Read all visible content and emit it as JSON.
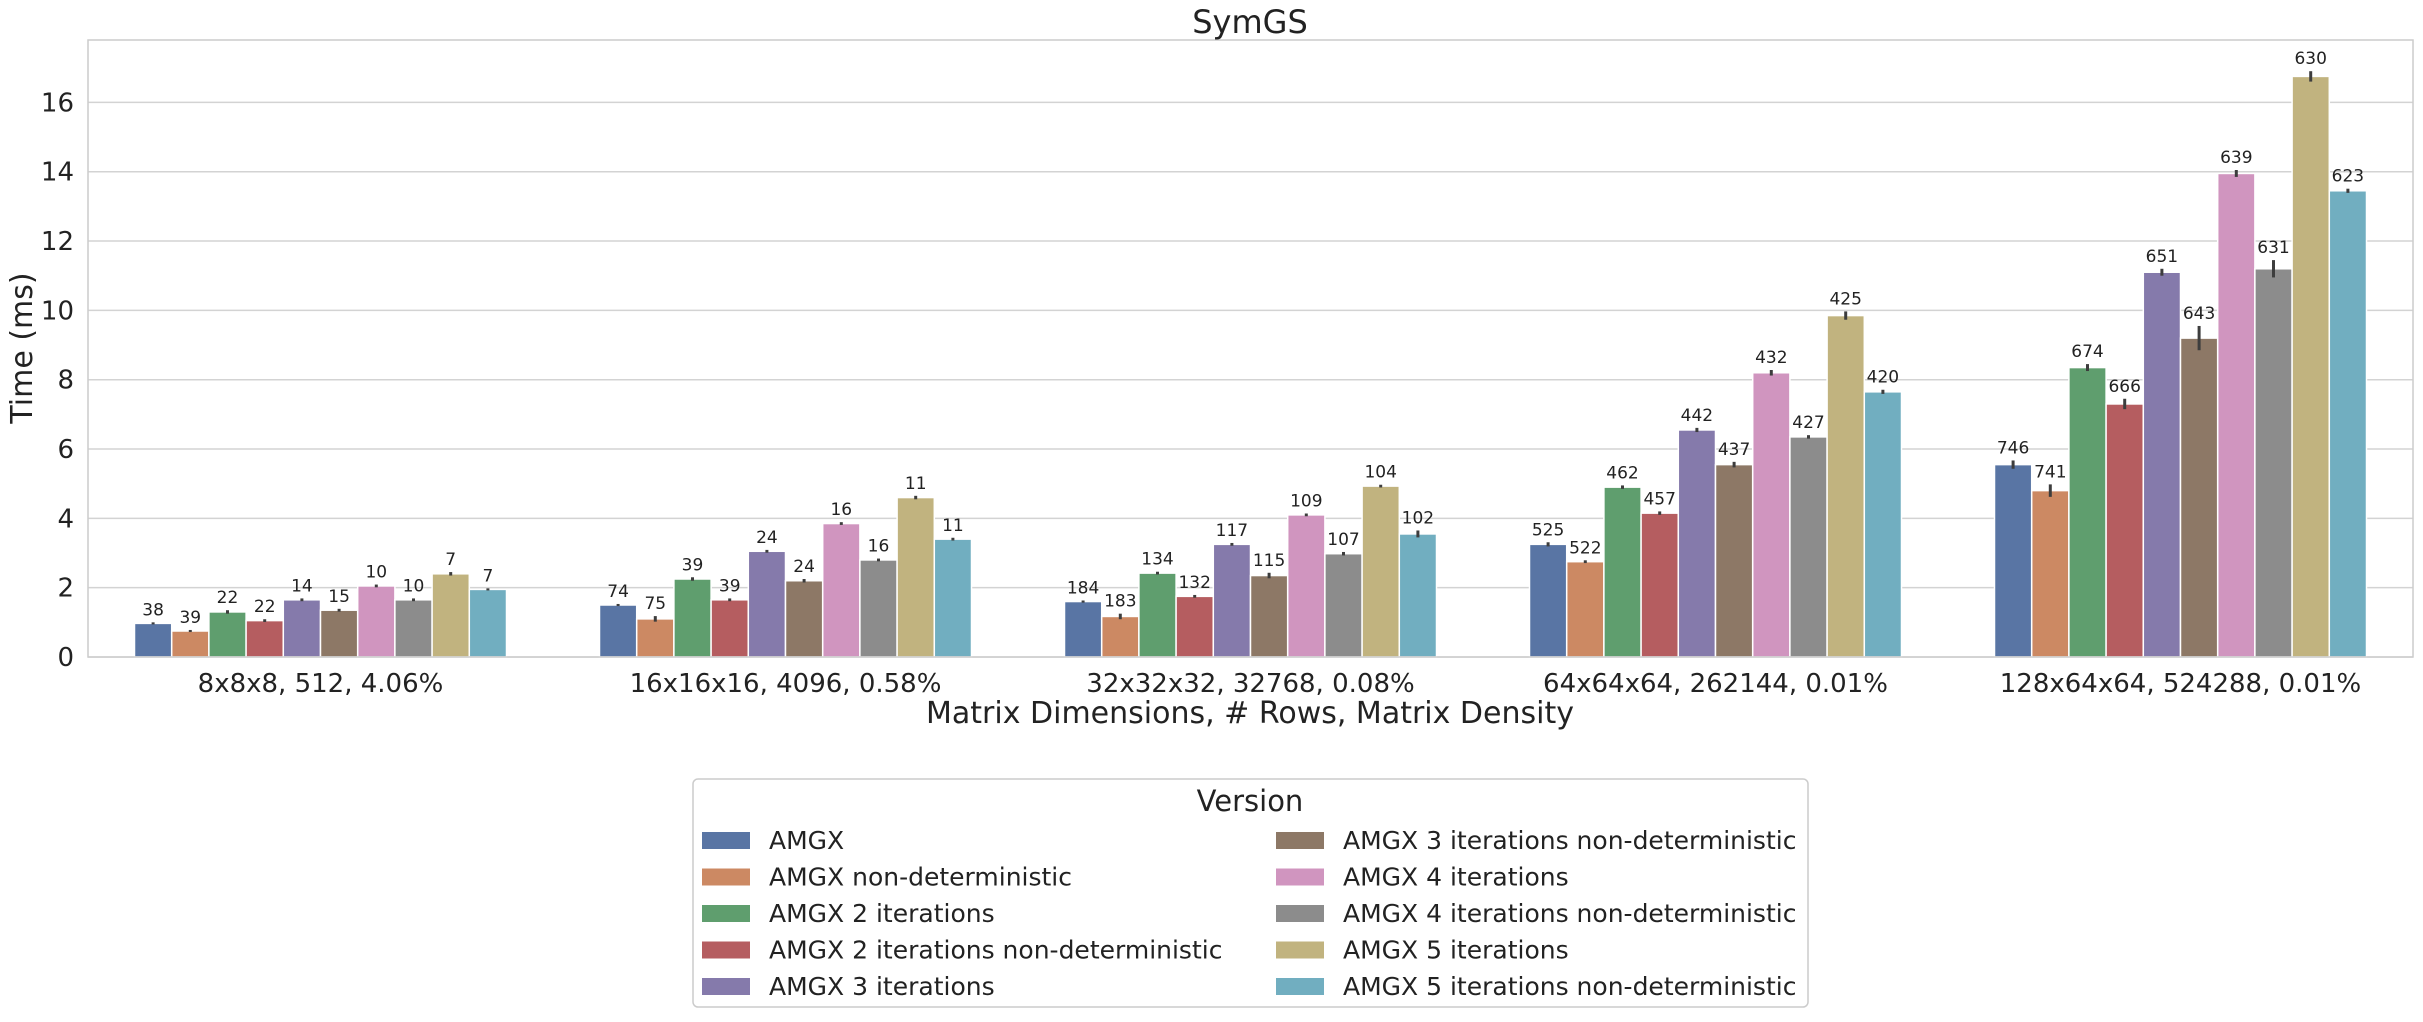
{
  "chart_data": {
    "type": "bar",
    "title": "SymGS",
    "xlabel": "Matrix Dimensions, # Rows, Matrix Density",
    "ylabel": "Time (ms)",
    "ylim": [
      0,
      17.8
    ],
    "yticks": [
      0,
      2,
      4,
      6,
      8,
      10,
      12,
      14,
      16
    ],
    "grid": "horizontal",
    "legend_title": "Version",
    "legend_position": "bottom-center",
    "categories": [
      "8x8x8, 512, 4.06%",
      "16x16x16, 4096, 0.58%",
      "32x32x32, 32768, 0.08%",
      "64x64x64, 262144, 0.01%",
      "128x64x64, 524288, 0.01%"
    ],
    "series": [
      {
        "name": "AMGX",
        "color": "#5975a4",
        "values": [
          0.97,
          1.5,
          1.6,
          3.25,
          5.55
        ],
        "errors": [
          0.03,
          0.03,
          0.03,
          0.06,
          0.12
        ],
        "labels": [
          "38",
          "74",
          "184",
          "525",
          "746"
        ]
      },
      {
        "name": "AMGX non-deterministic",
        "color": "#cc8963",
        "values": [
          0.75,
          1.1,
          1.17,
          2.75,
          4.8
        ],
        "errors": [
          0.03,
          0.08,
          0.08,
          0.04,
          0.18
        ],
        "labels": [
          "39",
          "75",
          "183",
          "522",
          "741"
        ]
      },
      {
        "name": "AMGX 2 iterations",
        "color": "#5f9e6e",
        "values": [
          1.3,
          2.25,
          2.42,
          4.9,
          8.35
        ],
        "errors": [
          0.05,
          0.05,
          0.04,
          0.05,
          0.1
        ],
        "labels": [
          "22",
          "39",
          "134",
          "462",
          "674"
        ]
      },
      {
        "name": "AMGX 2 iterations non-deterministic",
        "color": "#b55d60",
        "values": [
          1.05,
          1.65,
          1.75,
          4.15,
          7.3
        ],
        "errors": [
          0.04,
          0.04,
          0.04,
          0.05,
          0.15
        ],
        "labels": [
          "22",
          "39",
          "132",
          "457",
          "666"
        ]
      },
      {
        "name": "AMGX 3 iterations",
        "color": "#857aab",
        "values": [
          1.65,
          3.05,
          3.25,
          6.55,
          11.1
        ],
        "errors": [
          0.04,
          0.04,
          0.04,
          0.06,
          0.1
        ],
        "labels": [
          "14",
          "24",
          "117",
          "442",
          "651"
        ]
      },
      {
        "name": "AMGX 3 iterations non-deterministic",
        "color": "#8d7866",
        "values": [
          1.35,
          2.2,
          2.35,
          5.55,
          9.2
        ],
        "errors": [
          0.04,
          0.05,
          0.08,
          0.08,
          0.35
        ],
        "labels": [
          "15",
          "24",
          "115",
          "437",
          "643"
        ]
      },
      {
        "name": "AMGX 4 iterations",
        "color": "#d095bf",
        "values": [
          2.05,
          3.85,
          4.1,
          8.2,
          13.95
        ],
        "errors": [
          0.04,
          0.04,
          0.04,
          0.08,
          0.1
        ],
        "labels": [
          "10",
          "16",
          "109",
          "432",
          "639"
        ]
      },
      {
        "name": "AMGX 4 iterations non-deterministic",
        "color": "#8c8c8c",
        "values": [
          1.65,
          2.8,
          2.98,
          6.35,
          11.2
        ],
        "errors": [
          0.04,
          0.04,
          0.05,
          0.05,
          0.25
        ],
        "labels": [
          "10",
          "16",
          "107",
          "427",
          "631"
        ]
      },
      {
        "name": "AMGX 5 iterations",
        "color": "#c1b37f",
        "values": [
          2.4,
          4.6,
          4.93,
          9.85,
          16.75
        ],
        "errors": [
          0.05,
          0.05,
          0.04,
          0.12,
          0.15
        ],
        "labels": [
          "7",
          "11",
          "104",
          "425",
          "630"
        ]
      },
      {
        "name": "AMGX 5 iterations non-deterministic",
        "color": "#71aec0",
        "values": [
          1.95,
          3.4,
          3.55,
          7.65,
          13.45
        ],
        "errors": [
          0.03,
          0.04,
          0.1,
          0.06,
          0.06
        ],
        "labels": [
          "7",
          "11",
          "102",
          "420",
          "623"
        ]
      }
    ]
  }
}
